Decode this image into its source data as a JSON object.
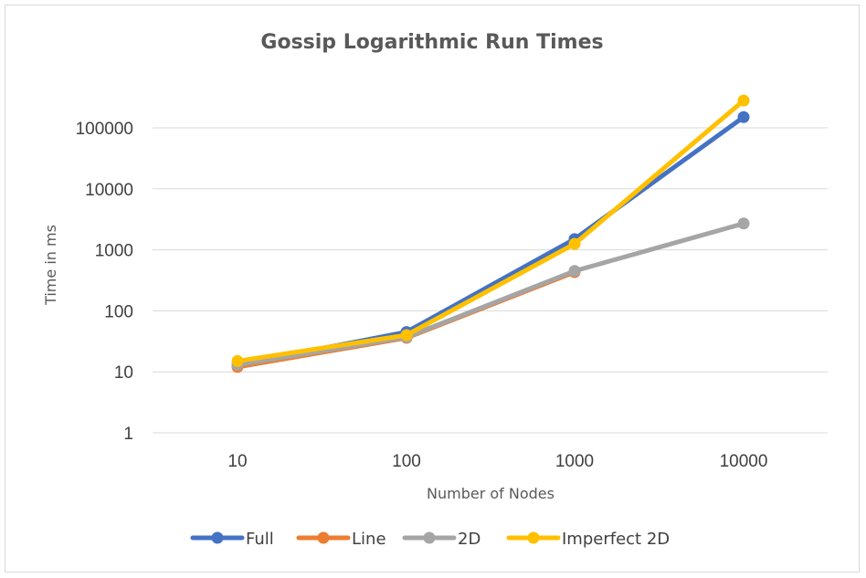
{
  "chart_data": {
    "type": "line",
    "title": "Gossip Logarithmic Run Times",
    "xlabel": "Number of Nodes",
    "ylabel": "Time in ms",
    "categories": [
      "10",
      "100",
      "1000",
      "10000"
    ],
    "y_scale": "log10",
    "ylim": [
      1,
      100000
    ],
    "y_ticks": [
      "1",
      "10",
      "100",
      "1000",
      "10000",
      "100000"
    ],
    "grid": "horizontal",
    "legend_position": "bottom",
    "series": [
      {
        "name": "Full",
        "color": "#4472c4",
        "values": [
          13,
          45,
          1500,
          150000
        ]
      },
      {
        "name": "Line",
        "color": "#ed7d31",
        "values": [
          12,
          36,
          430,
          null
        ]
      },
      {
        "name": "2D",
        "color": "#a5a5a5",
        "values": [
          13,
          37,
          450,
          2700
        ]
      },
      {
        "name": "Imperfect 2D",
        "color": "#ffc000",
        "values": [
          15,
          40,
          1250,
          280000
        ]
      }
    ]
  }
}
